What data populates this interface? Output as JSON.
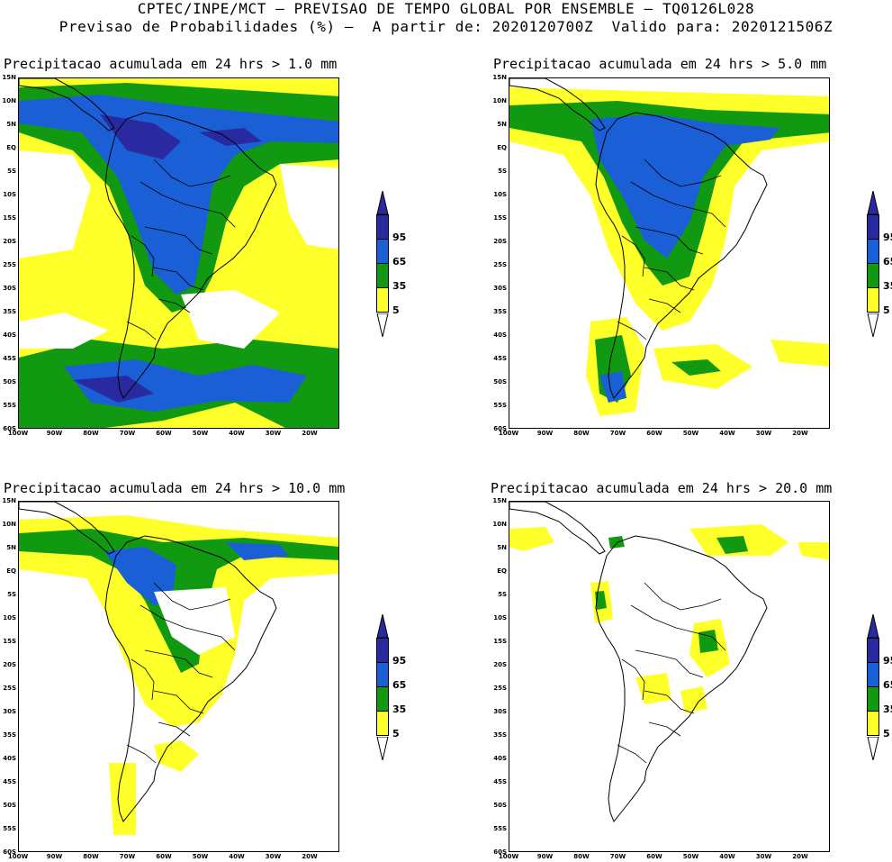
{
  "header": {
    "line1": "CPTEC/INPE/MCT – PREVISAO DE TEMPO GLOBAL POR ENSEMBLE – TQ0126L028",
    "line2": "Previsao de Probabilidades (%) –  A partir de: 2020120700Z  Valido para: 2020121506Z"
  },
  "axes": {
    "lat_labels": [
      "15N",
      "10N",
      "5N",
      "EQ",
      "5S",
      "10S",
      "15S",
      "20S",
      "25S",
      "30S",
      "35S",
      "40S",
      "45S",
      "50S",
      "55S",
      "60S"
    ],
    "lon_labels": [
      "100W",
      "90W",
      "80W",
      "70W",
      "60W",
      "50W",
      "40W",
      "30W",
      "20W"
    ]
  },
  "colorbar": {
    "labels": [
      "95",
      "65",
      "35",
      "5"
    ],
    "colors": {
      "yellow": "#ffff2a",
      "green": "#119a11",
      "blue": "#1a5fd6",
      "navy": "#2a2aa0"
    }
  },
  "panels": [
    {
      "title": "Precipitacao acumulada em 24 hrs > 1.0 mm"
    },
    {
      "title": "Precipitacao acumulada em 24 hrs > 5.0 mm"
    },
    {
      "title": "Precipitacao acumulada em 24 hrs > 10.0 mm"
    },
    {
      "title": "Precipitacao acumulada em 24 hrs > 20.0 mm"
    }
  ]
}
